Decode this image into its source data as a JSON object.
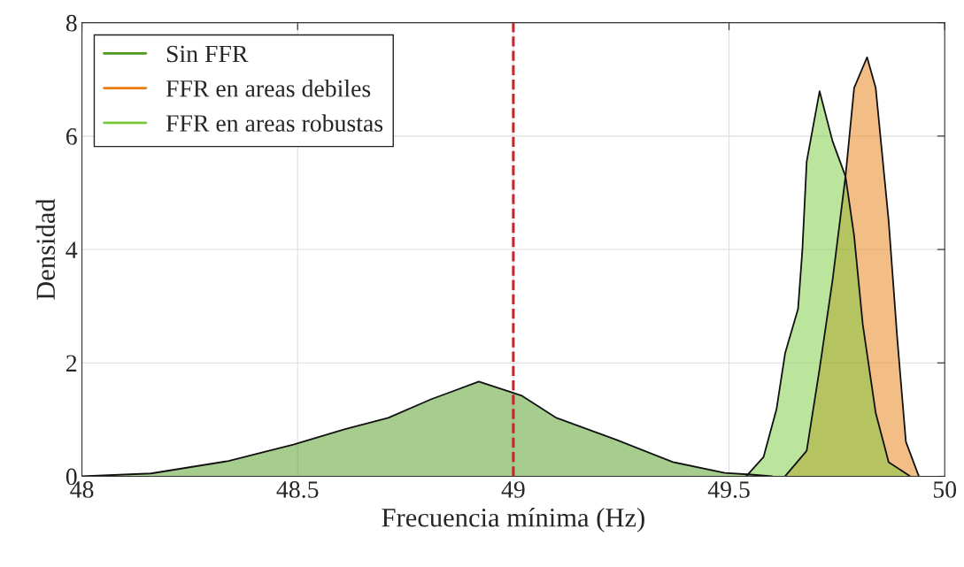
{
  "chart_data": {
    "type": "area",
    "xlabel": "Frecuencia mínima (Hz)",
    "ylabel": "Densidad",
    "xlim": [
      48,
      50
    ],
    "xticks": [
      48,
      48.5,
      49,
      49.5,
      50
    ],
    "ylim": [
      0,
      8
    ],
    "yticks": [
      0,
      2,
      4,
      6,
      8
    ],
    "grid": true,
    "legend": "top left",
    "series": [
      {
        "name": "Sin FFR",
        "color": "#4d9a1e",
        "x": [
          48.0,
          48.16,
          48.34,
          48.49,
          48.61,
          48.71,
          48.81,
          48.92,
          49.02,
          49.1,
          49.24,
          49.37,
          49.49,
          49.55,
          49.6
        ],
        "values": [
          0,
          0.05,
          0.27,
          0.56,
          0.83,
          1.03,
          1.36,
          1.67,
          1.42,
          1.03,
          0.64,
          0.25,
          0.06,
          0.03,
          0
        ]
      },
      {
        "name": "FFR en areas debiles",
        "color": "#e87d0d",
        "x": [
          49.63,
          49.68,
          49.71,
          49.74,
          49.77,
          49.79,
          49.82,
          49.84,
          49.87,
          49.89,
          49.91,
          49.94
        ],
        "values": [
          0,
          0.45,
          1.9,
          3.46,
          5.29,
          6.85,
          7.39,
          6.85,
          4.51,
          2.43,
          0.61,
          0
        ]
      },
      {
        "name": "FFR en areas robustas",
        "color": "#77c93b",
        "x": [
          49.54,
          49.58,
          49.61,
          49.63,
          49.66,
          49.67,
          49.68,
          49.71,
          49.74,
          49.77,
          49.79,
          49.81,
          49.84,
          49.87,
          49.92
        ],
        "values": [
          0,
          0.34,
          1.18,
          2.17,
          2.95,
          3.99,
          5.55,
          6.79,
          5.91,
          5.29,
          4.24,
          2.68,
          1.12,
          0.25,
          0
        ]
      }
    ],
    "ref_lines": [
      {
        "axis": "x",
        "value": 49,
        "color": "#c0282d",
        "line_style": "dashed"
      }
    ]
  }
}
